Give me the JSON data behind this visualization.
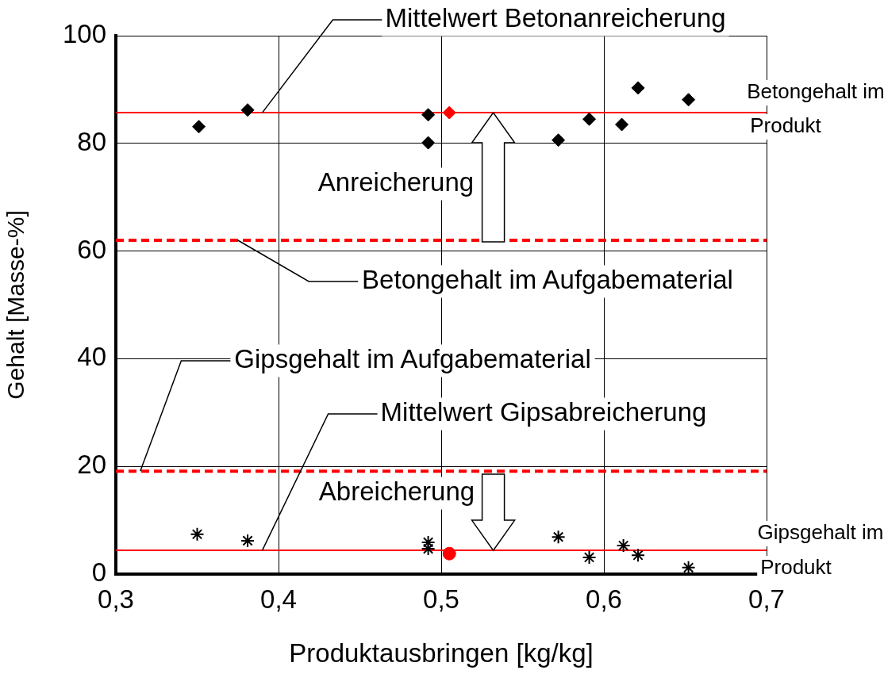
{
  "chart_data": {
    "type": "scatter",
    "xlabel": "Produktausbringen [kg/kg]",
    "ylabel": "Gehalt [Masse-%]",
    "xlim": [
      0.3,
      0.7
    ],
    "xticks": [
      {
        "value": 0.3,
        "label": "0,3"
      },
      {
        "value": 0.4,
        "label": "0,4"
      },
      {
        "value": 0.5,
        "label": "0,5"
      },
      {
        "value": 0.6,
        "label": "0,6"
      },
      {
        "value": 0.7,
        "label": "0,7"
      }
    ],
    "ylim": [
      0,
      100
    ],
    "yticks": [
      0,
      20,
      40,
      60,
      80,
      100
    ],
    "grid": true,
    "legend": false,
    "series": [
      {
        "color": "#000000",
        "marker": "diamond",
        "x": [
          0.351,
          0.381,
          0.492,
          0.492,
          0.572,
          0.591,
          0.611,
          0.621,
          0.652
        ],
        "values": [
          83.1,
          86.2,
          85.3,
          80.1,
          80.6,
          84.5,
          83.5,
          90.3,
          88.1
        ]
      },
      {
        "color": "#000000",
        "marker": "cross",
        "x": [
          0.35,
          0.381,
          0.492,
          0.492,
          0.572,
          0.591,
          0.612,
          0.621,
          0.652
        ],
        "values": [
          7.4,
          6.2,
          5.9,
          4.7,
          6.9,
          3.1,
          5.3,
          3.5,
          1.2
        ]
      },
      {
        "color": "#ff0000",
        "marker": "diamond",
        "x": [
          0.505
        ],
        "values": [
          85.7
        ]
      },
      {
        "color": "#ff0000",
        "marker": "circle",
        "x": [
          0.505
        ],
        "values": [
          3.8
        ]
      }
    ],
    "ref_lines": [
      {
        "axis": "y",
        "value": 85.7,
        "color": "#ff0000",
        "line_style": "solid"
      },
      {
        "axis": "y",
        "value": 62,
        "color": "#ff0000",
        "line_style": "dashed"
      },
      {
        "axis": "y",
        "value": 19.1,
        "color": "#ff0000",
        "line_style": "dashed"
      },
      {
        "axis": "y",
        "value": 4.4,
        "color": "#ff0000",
        "line_style": "solid"
      }
    ],
    "annotations": [
      {
        "text": "Mittelwert Betonanreicherung",
        "x": 0.39,
        "y": 85.7
      },
      "Betongehalt im Produkt",
      {
        "text": "Anreicherung",
        "x": 0.532,
        "y": 85.7
      },
      {
        "text": "Betongehalt im Aufgabematerial",
        "x": 0.375,
        "y": 62
      },
      {
        "text": "Gipsgehalt im Aufgabematerial",
        "x": 0.315,
        "y": 19.1
      },
      {
        "text": "Mittelwert Gipsabreicherung",
        "x": 0.39,
        "y": 4.4
      },
      {
        "text": "Abreicherung",
        "x": 0.532,
        "y": 4.4
      },
      "Gipsgehalt im Produkt"
    ]
  }
}
